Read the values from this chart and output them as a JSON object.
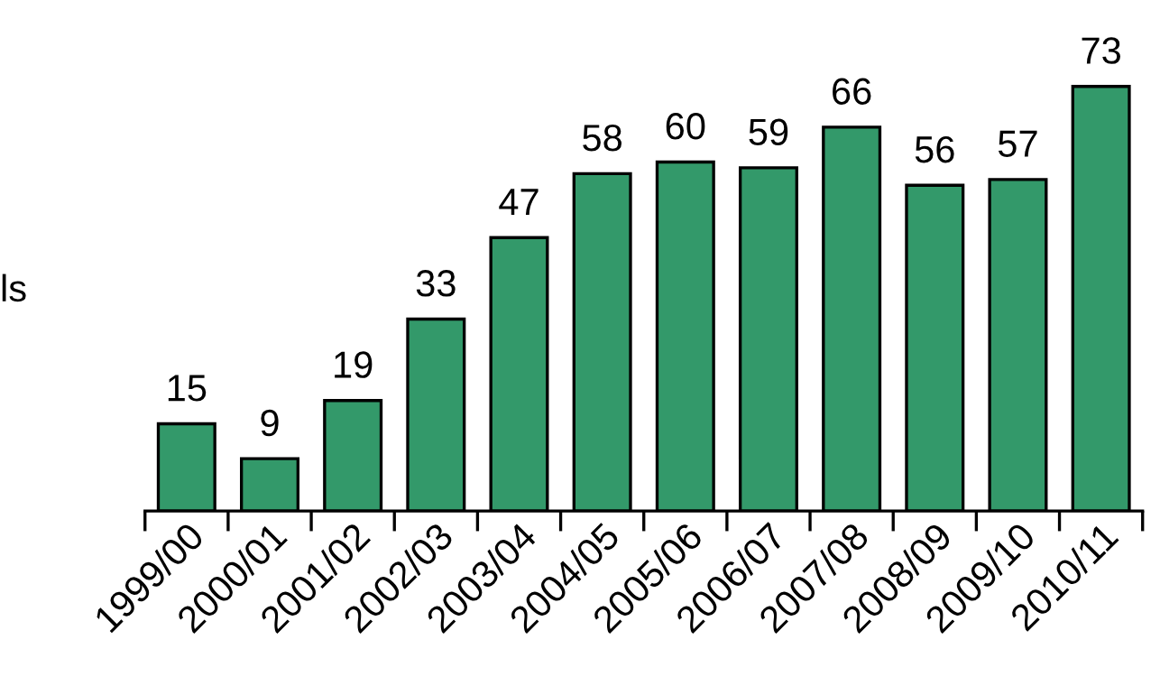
{
  "chart_data": {
    "type": "bar",
    "categories": [
      "1999/00",
      "2000/01",
      "2001/02",
      "2002/03",
      "2003/04",
      "2004/05",
      "2005/06",
      "2006/07",
      "2007/08",
      "2008/09",
      "2009/10",
      "2010/11"
    ],
    "series": [
      {
        "color": "#33996a",
        "values": [
          15,
          9,
          19,
          33,
          47,
          58,
          60,
          59,
          66,
          56,
          57,
          73
        ]
      }
    ],
    "data_labels": true,
    "annotations": [
      "ls"
    ],
    "grid": false,
    "legend": false
  }
}
